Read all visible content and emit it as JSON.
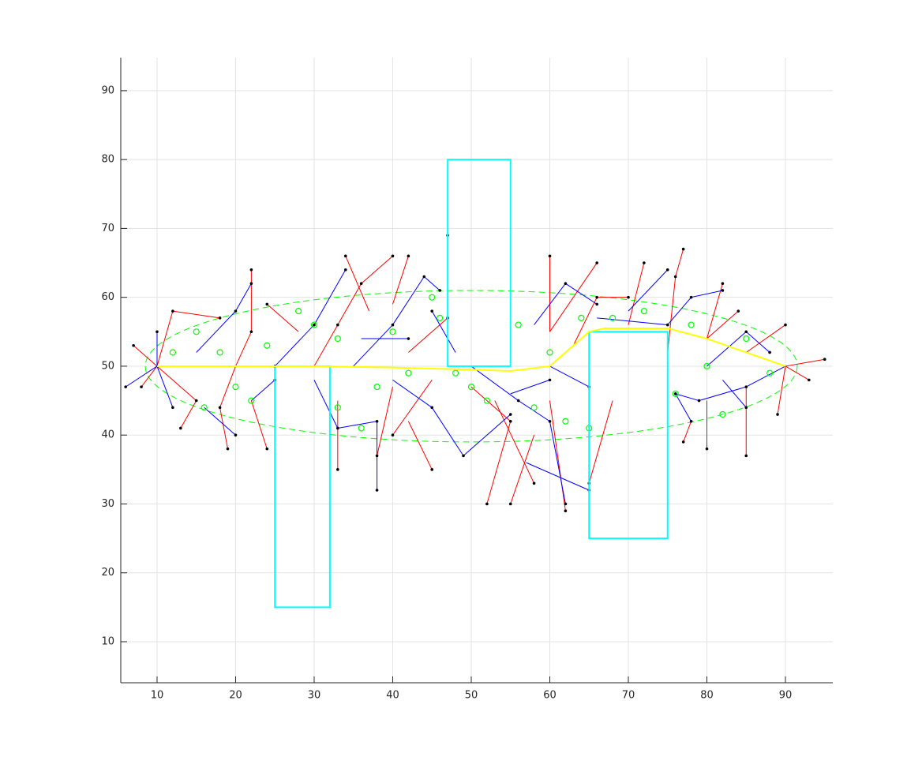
{
  "chart_data": {
    "type": "tree",
    "xlim": [
      5.38,
      96.03
    ],
    "ylim": [
      4.04,
      94.8
    ],
    "xticks": [
      10,
      20,
      30,
      40,
      50,
      60,
      70,
      80,
      90
    ],
    "yticks": [
      10,
      20,
      30,
      40,
      50,
      60,
      70,
      80,
      90
    ],
    "grid": true,
    "obstacles": {
      "color": "#00ffff",
      "rects": [
        [
          25,
          15,
          32,
          50
        ],
        [
          47,
          50,
          55,
          80
        ],
        [
          65,
          25,
          75,
          55
        ]
      ]
    },
    "ellipse": {
      "color": "#00ff00",
      "center": [
        50,
        50
      ],
      "radii": [
        41.5,
        11
      ]
    },
    "path": {
      "color": "#ffff00",
      "x": [
        10,
        20,
        30,
        40,
        50,
        55,
        60,
        63,
        65,
        67,
        75,
        80,
        85,
        90
      ],
      "y": [
        50,
        50,
        50,
        49.8,
        49.5,
        49.3,
        50,
        53,
        55,
        55.5,
        55.5,
        54,
        52,
        50
      ]
    },
    "series": [
      {
        "color": "#ff0000",
        "segments": [
          [
            10,
            50,
            7,
            53
          ],
          [
            10,
            50,
            8,
            47
          ],
          [
            10,
            50,
            12,
            58
          ],
          [
            10,
            50,
            15,
            45
          ],
          [
            12,
            58,
            18,
            57
          ],
          [
            15,
            45,
            13,
            41
          ],
          [
            20,
            50,
            22,
            55
          ],
          [
            20,
            50,
            18,
            44
          ],
          [
            22,
            55,
            22,
            64
          ],
          [
            18,
            44,
            19,
            38
          ],
          [
            22,
            45,
            24,
            38
          ],
          [
            30,
            50,
            33,
            56
          ],
          [
            33,
            56,
            36,
            62
          ],
          [
            33,
            45,
            33,
            35
          ],
          [
            36,
            62,
            40,
            66
          ],
          [
            40,
            47,
            38,
            37
          ],
          [
            42,
            52,
            47,
            57
          ],
          [
            47,
            57,
            47,
            69
          ],
          [
            42,
            42,
            45,
            35
          ],
          [
            50,
            47,
            55,
            42
          ],
          [
            55,
            42,
            52,
            30
          ],
          [
            53,
            45,
            58,
            33
          ],
          [
            60,
            45,
            62,
            29
          ],
          [
            58,
            40,
            55,
            30
          ],
          [
            60,
            55,
            60,
            66
          ],
          [
            60,
            55,
            66,
            65
          ],
          [
            63,
            53,
            66,
            60
          ],
          [
            66,
            60,
            70,
            60
          ],
          [
            70,
            56,
            72,
            65
          ],
          [
            75,
            52,
            76,
            63
          ],
          [
            76,
            63,
            77,
            67
          ],
          [
            80,
            54,
            84,
            58
          ],
          [
            80,
            54,
            82,
            62
          ],
          [
            85,
            52,
            90,
            56
          ],
          [
            90,
            50,
            95,
            51
          ],
          [
            90,
            50,
            93,
            48
          ],
          [
            85,
            47,
            85,
            37
          ],
          [
            80,
            45,
            80,
            38
          ],
          [
            78,
            42,
            77,
            39
          ],
          [
            90,
            50,
            89,
            43
          ],
          [
            68,
            45,
            65,
            33
          ],
          [
            45,
            48,
            40,
            40
          ],
          [
            28,
            55,
            24,
            59
          ],
          [
            37,
            58,
            34,
            66
          ],
          [
            40,
            59,
            42,
            66
          ]
        ]
      },
      {
        "color": "#0000ff",
        "segments": [
          [
            10,
            50,
            10,
            55
          ],
          [
            10,
            50,
            6,
            47
          ],
          [
            10,
            50,
            12,
            44
          ],
          [
            15,
            52,
            20,
            58
          ],
          [
            20,
            58,
            22,
            62
          ],
          [
            20,
            50,
            25,
            50
          ],
          [
            25,
            50,
            30,
            56
          ],
          [
            30,
            56,
            34,
            64
          ],
          [
            22,
            45,
            25,
            48
          ],
          [
            16,
            44,
            20,
            40
          ],
          [
            30,
            48,
            33,
            41
          ],
          [
            33,
            41,
            38,
            42
          ],
          [
            38,
            42,
            38,
            32
          ],
          [
            35,
            50,
            40,
            56
          ],
          [
            40,
            56,
            44,
            63
          ],
          [
            44,
            63,
            46,
            61
          ],
          [
            40,
            48,
            45,
            44
          ],
          [
            45,
            44,
            49,
            37
          ],
          [
            49,
            37,
            55,
            43
          ],
          [
            50,
            50,
            56,
            45
          ],
          [
            56,
            45,
            60,
            42
          ],
          [
            60,
            42,
            62,
            30
          ],
          [
            57,
            36,
            65,
            32
          ],
          [
            55,
            46,
            60,
            48
          ],
          [
            58,
            56,
            62,
            62
          ],
          [
            62,
            62,
            66,
            59
          ],
          [
            60,
            50,
            65,
            47
          ],
          [
            66,
            57,
            75,
            56
          ],
          [
            75,
            56,
            78,
            60
          ],
          [
            78,
            60,
            82,
            61
          ],
          [
            80,
            50,
            85,
            55
          ],
          [
            85,
            55,
            88,
            52
          ],
          [
            90,
            50,
            85,
            47
          ],
          [
            85,
            47,
            79,
            45
          ],
          [
            79,
            45,
            76,
            46
          ],
          [
            76,
            46,
            78,
            42
          ],
          [
            82,
            48,
            85,
            44
          ],
          [
            70,
            58,
            75,
            64
          ],
          [
            48,
            52,
            45,
            58
          ],
          [
            36,
            54,
            42,
            54
          ]
        ]
      }
    ],
    "near_nodes": {
      "color": "#00ff00",
      "x": [
        12,
        15,
        18,
        20,
        22,
        24,
        16,
        28,
        30,
        33,
        33,
        36,
        38,
        40,
        42,
        45,
        46,
        48,
        50,
        52,
        56,
        58,
        60,
        62,
        64,
        65,
        68,
        72,
        76,
        78,
        80,
        82,
        85,
        88
      ],
      "y": [
        52,
        55,
        52,
        47,
        45,
        53,
        44,
        58,
        56,
        54,
        44,
        41,
        47,
        55,
        49,
        60,
        57,
        49,
        47,
        45,
        56,
        44,
        52,
        42,
        57,
        41,
        57,
        58,
        46,
        56,
        50,
        43,
        54,
        49
      ]
    }
  }
}
